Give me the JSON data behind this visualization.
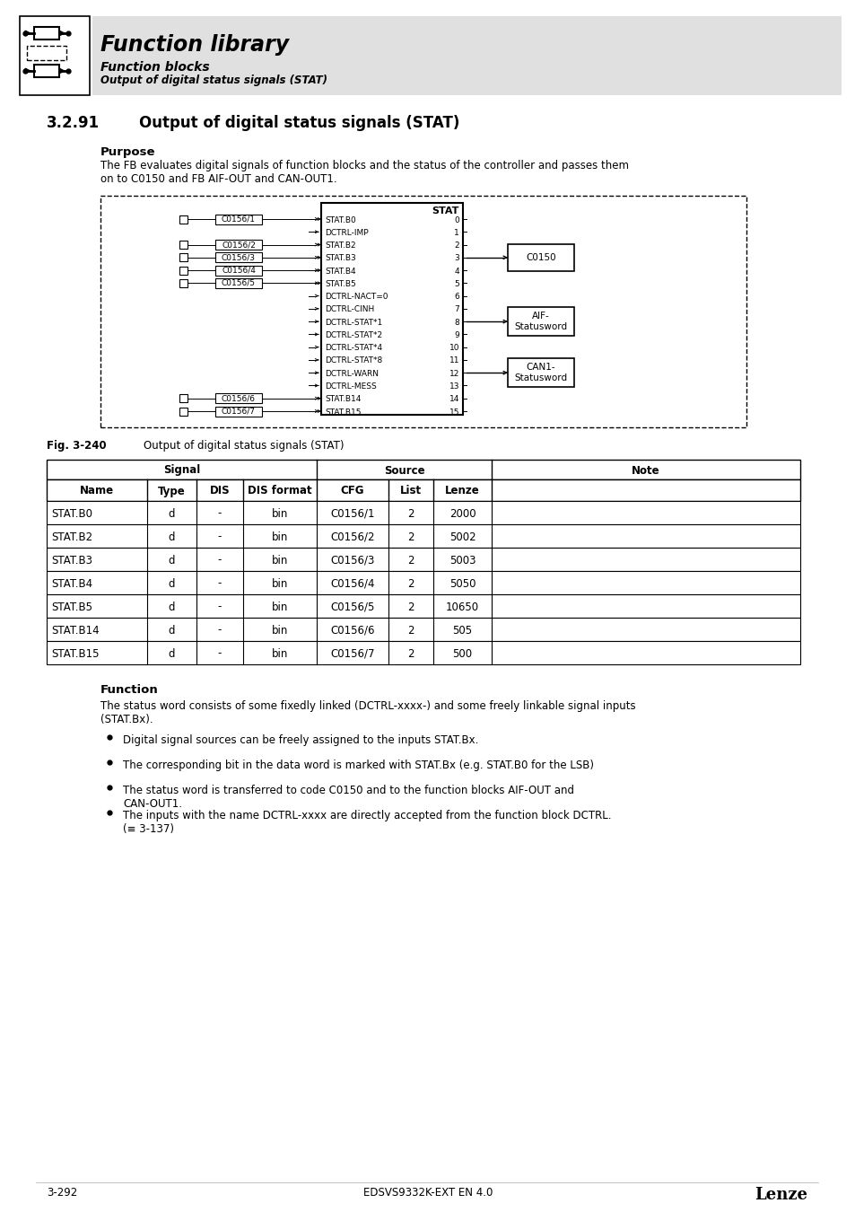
{
  "page_title": "Function library",
  "subtitle1": "Function blocks",
  "subtitle2": "Output of digital status signals (STAT)",
  "section": "3.2.91",
  "section_title": "Output of digital status signals (STAT)",
  "purpose_heading": "Purpose",
  "purpose_text": "The FB evaluates digital signals of function blocks and the status of the controller and passes them\non to C0150 and FB AIF-OUT and CAN-OUT1.",
  "fig_label": "Fig. 3-240",
  "fig_caption": "Output of digital status signals (STAT)",
  "function_heading": "Function",
  "function_text": "The status word consists of some fixedly linked (DCTRL-xxxx-) and some freely linkable signal inputs\n(STAT.Bx).",
  "bullets": [
    "Digital signal sources can be freely assigned to the inputs STAT.Bx.",
    "The corresponding bit in the data word is marked with STAT.Bx (e.g. STAT.B0 for the LSB)",
    "The status word is transferred to code C0150 and to the function blocks AIF-OUT and\nCAN-OUT1.",
    "The inputs with the name DCTRL-xxxx are directly accepted from the function block DCTRL.\n(≡ 3-137)"
  ],
  "footer_left": "3-292",
  "footer_center": "EDSVS9332K-EXT EN 4.0",
  "footer_right": "Lenze",
  "table_data": [
    [
      "STAT.B0",
      "d",
      "-",
      "bin",
      "C0156/1",
      "2",
      "2000",
      ""
    ],
    [
      "STAT.B2",
      "d",
      "-",
      "bin",
      "C0156/2",
      "2",
      "5002",
      ""
    ],
    [
      "STAT.B3",
      "d",
      "-",
      "bin",
      "C0156/3",
      "2",
      "5003",
      ""
    ],
    [
      "STAT.B4",
      "d",
      "-",
      "bin",
      "C0156/4",
      "2",
      "5050",
      ""
    ],
    [
      "STAT.B5",
      "d",
      "-",
      "bin",
      "C0156/5",
      "2",
      "10650",
      ""
    ],
    [
      "STAT.B14",
      "d",
      "-",
      "bin",
      "C0156/6",
      "2",
      "505",
      ""
    ],
    [
      "STAT.B15",
      "d",
      "-",
      "bin",
      "C0156/7",
      "2",
      "500",
      ""
    ]
  ],
  "bg_color": "#ffffff",
  "header_gray": "#e0e0e0",
  "diagram_signals": [
    "STAT.B0",
    "DCTRL-IMP",
    "STAT.B2",
    "STAT.B3",
    "STAT.B4",
    "STAT.B5",
    "DCTRL-NACT=0",
    "DCTRL-CINH",
    "DCTRL-STAT*1",
    "DCTRL-STAT*2",
    "DCTRL-STAT*4",
    "DCTRL-STAT*8",
    "DCTRL-WARN",
    "DCTRL-MESS",
    "STAT.B14",
    "STAT.B15"
  ],
  "diagram_numbers": [
    "0",
    "1",
    "2",
    "3",
    "4",
    "5",
    "6",
    "7",
    "8",
    "9",
    "10",
    "11",
    "12",
    "13",
    "14",
    "15"
  ],
  "connected_signals": [
    0,
    2,
    3,
    4,
    5,
    14,
    15
  ],
  "connected_labels": [
    "C0156/1",
    "C0156/2",
    "C0156/3",
    "C0156/4",
    "C0156/5",
    "C0156/6",
    "C0156/7"
  ]
}
